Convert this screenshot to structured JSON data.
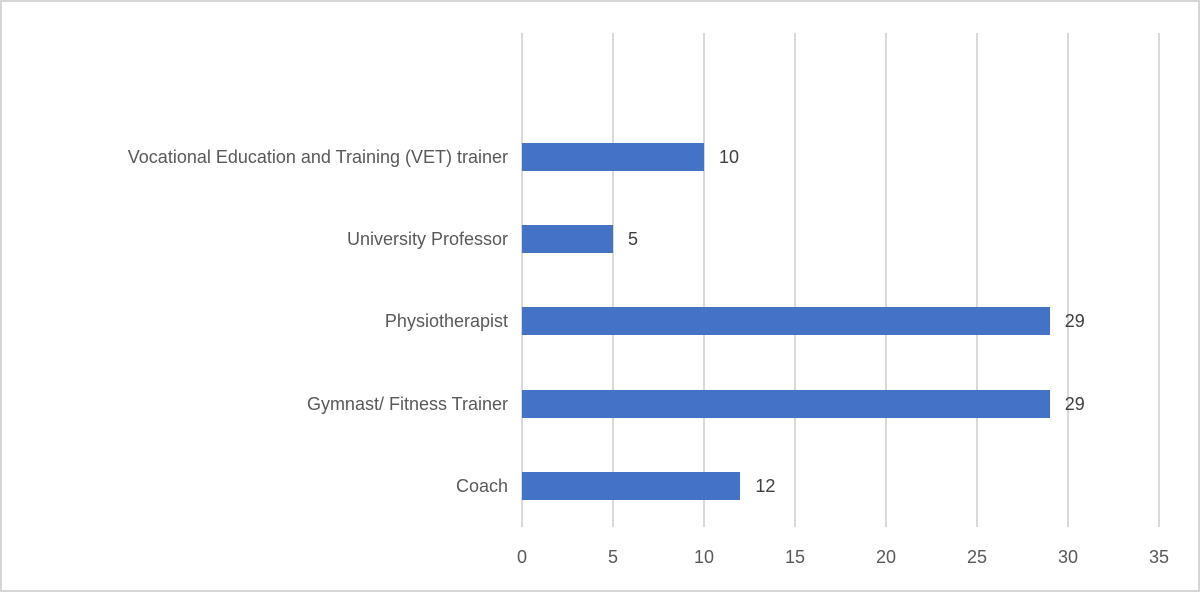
{
  "chart_data": {
    "type": "bar",
    "orientation": "horizontal",
    "title": "",
    "xlabel": "",
    "ylabel": "",
    "categories": [
      "Vocational Education and Training (VET) trainer",
      "University Professor",
      "Physiotherapist",
      "Gymnast/ Fitness Trainer",
      "Coach"
    ],
    "values": [
      10,
      5,
      29,
      29,
      12
    ],
    "data_labels": [
      "10",
      "5",
      "29",
      "29",
      "12"
    ],
    "xlim": [
      0,
      35
    ],
    "x_ticks": [
      0,
      5,
      10,
      15,
      20,
      25,
      30,
      35
    ],
    "x_tick_labels": [
      "0",
      "5",
      "10",
      "15",
      "20",
      "25",
      "30",
      "35"
    ],
    "grid": "vertical-only",
    "legend": "none",
    "colors": {
      "bar": "#4472C4",
      "gridline": "#d9d9d9",
      "category_text": "#595959",
      "tick_text": "#595959",
      "data_label_text": "#404040",
      "frame_border": "#d5d5d5",
      "background": "#ffffff"
    }
  }
}
